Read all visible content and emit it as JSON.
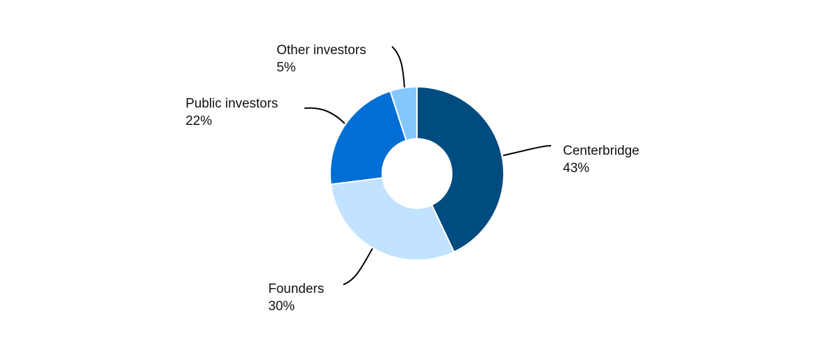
{
  "chart_data": {
    "type": "pie",
    "variant": "donut",
    "title": "",
    "slices": [
      {
        "label": "Centerbridge",
        "value": 43,
        "display": "43%",
        "color": "#004B7F"
      },
      {
        "label": "Founders",
        "value": 30,
        "display": "30%",
        "color": "#C2E3FF"
      },
      {
        "label": "Public investors",
        "value": 22,
        "display": "22%",
        "color": "#006ED4"
      },
      {
        "label": "Other investors",
        "value": 5,
        "display": "5%",
        "color": "#84C7FF"
      }
    ],
    "start_angle": "12 o'clock",
    "direction": "clockwise",
    "legend": "none",
    "labels": "outside with leader lines"
  }
}
